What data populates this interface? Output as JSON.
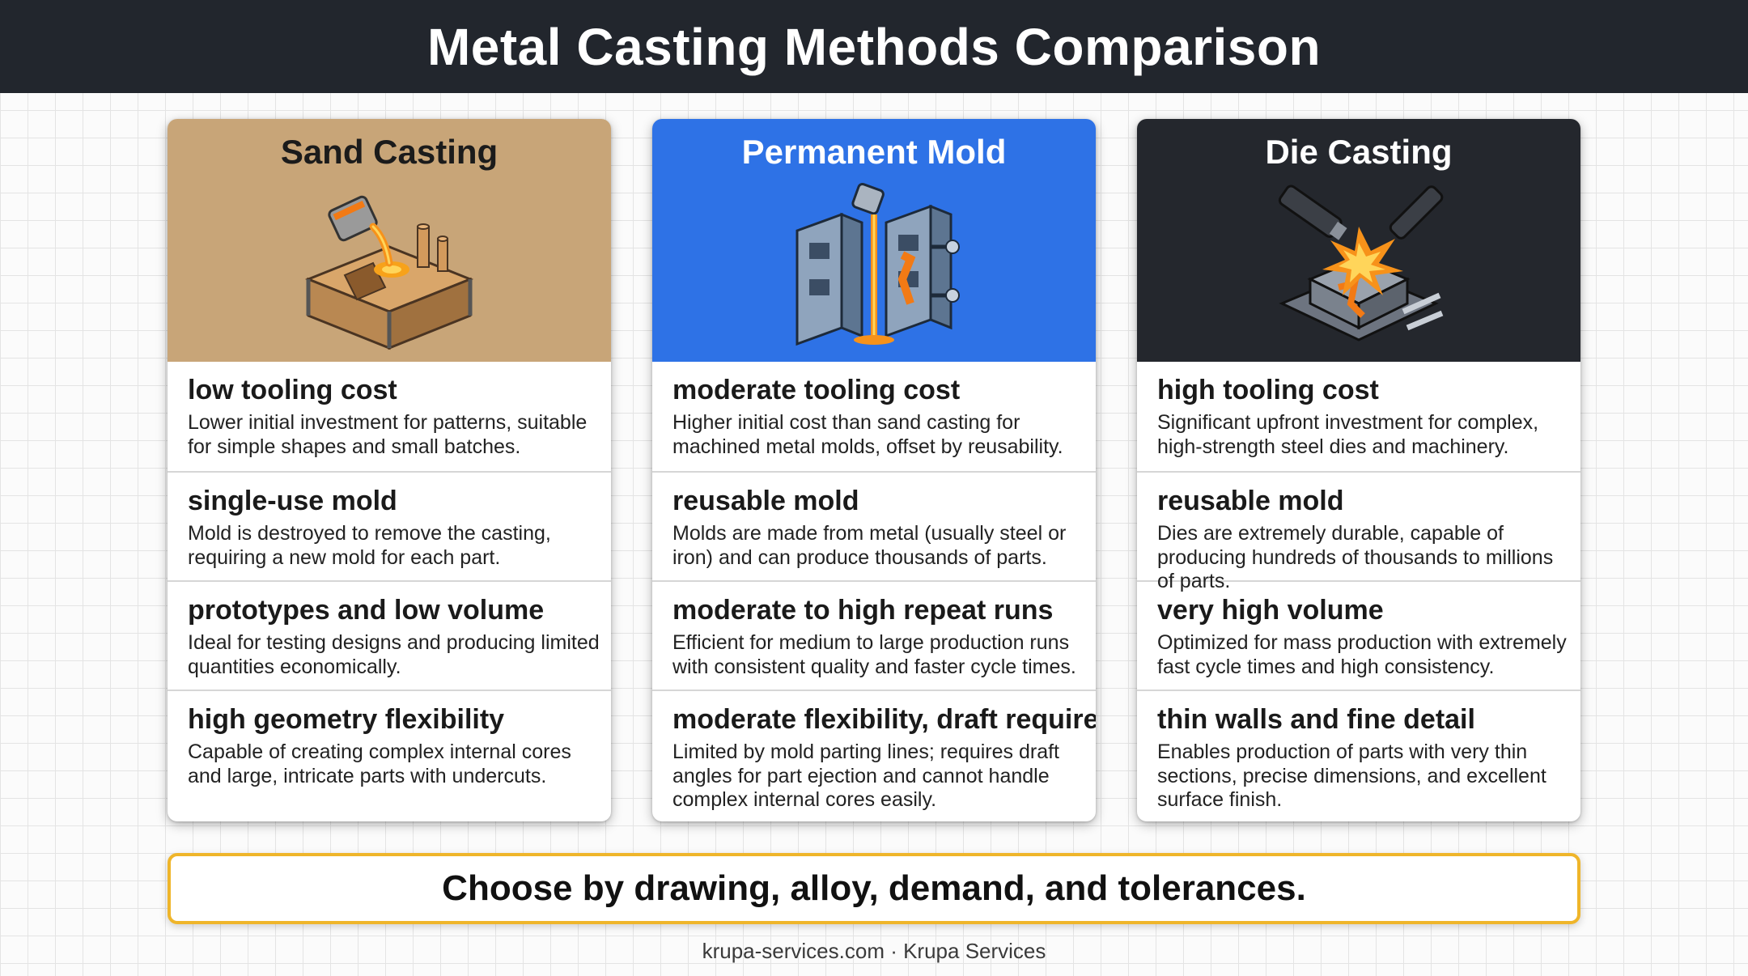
{
  "title": "Metal Casting Methods Comparison",
  "cards": [
    {
      "name": "Sand Casting",
      "icon": "sand-mold-pouring-icon",
      "header_color": "#c8a578",
      "rows": [
        {
          "title": "low tooling cost",
          "desc": "Lower initial investment for patterns, suitable for simple shapes and small batches."
        },
        {
          "title": "single-use mold",
          "desc": "Mold is destroyed to remove the casting, requiring a new mold for each part."
        },
        {
          "title": "prototypes and low volume",
          "desc": "Ideal for testing designs and producing limited quantities economically."
        },
        {
          "title": "high geometry flexibility",
          "desc": "Capable of creating complex internal cores and large, intricate parts with undercuts."
        }
      ]
    },
    {
      "name": "Permanent Mold",
      "icon": "metal-mold-pouring-icon",
      "header_color": "#2e72e6",
      "rows": [
        {
          "title": "moderate tooling cost",
          "desc": "Higher initial cost than sand casting for machined metal molds, offset by reusability."
        },
        {
          "title": "reusable mold",
          "desc": "Molds are made from metal (usually steel or iron) and can produce thousands of parts."
        },
        {
          "title": "moderate to high repeat runs",
          "desc": "Efficient for medium to large production runs with consistent quality and faster cycle times."
        },
        {
          "title": "moderate flexibility, draft required",
          "desc": "Limited by mold parting lines; requires draft angles for part ejection and cannot handle complex internal cores easily."
        }
      ]
    },
    {
      "name": "Die Casting",
      "icon": "die-casting-injection-icon",
      "header_color": "#24272d",
      "rows": [
        {
          "title": "high tooling cost",
          "desc": "Significant upfront investment for complex, high-strength steel dies and machinery."
        },
        {
          "title": "reusable mold",
          "desc": "Dies are extremely durable, capable of producing hundreds of thousands to millions of parts."
        },
        {
          "title": "very high volume",
          "desc": "Optimized for mass production with extremely fast cycle times and high consistency."
        },
        {
          "title": "thin walls and fine detail",
          "desc": "Enables production of parts with very thin sections, precise dimensions, and excellent surface finish."
        }
      ]
    }
  ],
  "callout": "Choose by drawing, alloy, demand, and tolerances.",
  "footer": "krupa-services.com · Krupa Services",
  "accent_color": "#efb52a"
}
